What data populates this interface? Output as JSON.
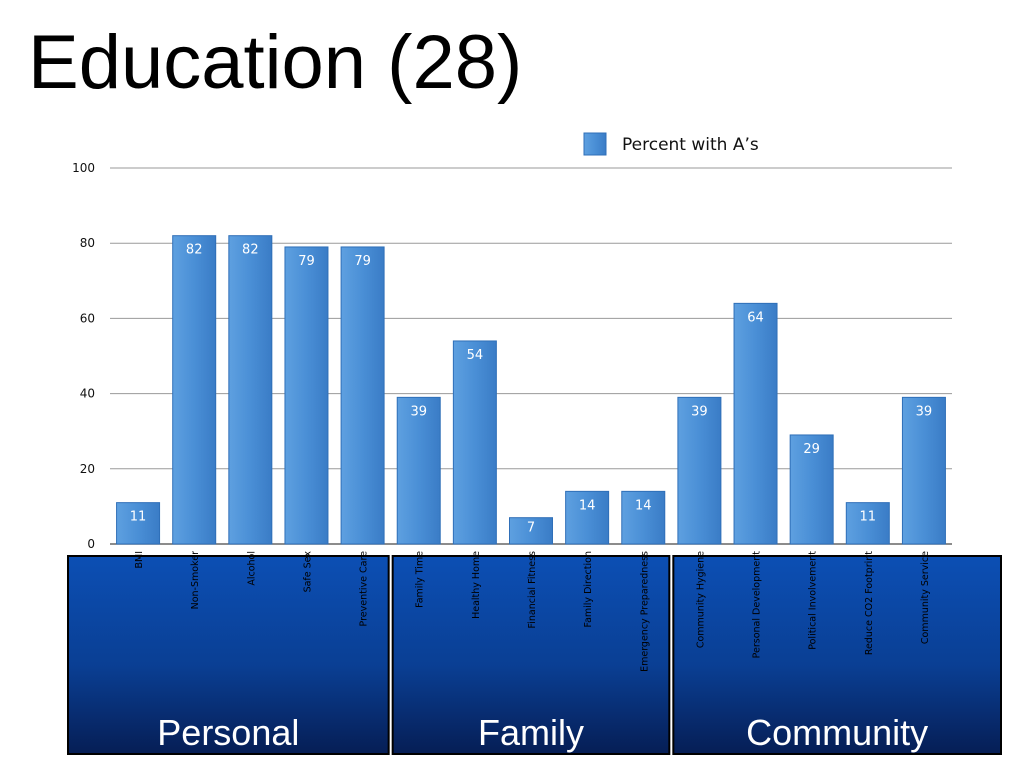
{
  "title": "Education (28)",
  "chart_data": {
    "type": "bar",
    "categories": [
      "BMI",
      "Non-Smoker",
      "Alcohol",
      "Safe Sex",
      "Preventive Care",
      "Family Time",
      "Healthy Home",
      "Financial Fitness",
      "Family Direction",
      "Emergency Preparedness",
      "Community Hygiene",
      "Personal Development",
      "Political Involvement",
      "Reduce CO2 Footprint",
      "Community Service"
    ],
    "series": [
      {
        "name": "Percent with A’s",
        "values": [
          11,
          82,
          82,
          79,
          79,
          39,
          54,
          7,
          14,
          14,
          39,
          64,
          29,
          11,
          39
        ]
      }
    ],
    "ylim": [
      0,
      100
    ],
    "yticks": [
      0,
      20,
      40,
      60,
      80,
      100
    ],
    "grid": true,
    "legend": "top-right",
    "colors": {
      "bar": "#4a90d6",
      "bar_dark": "#2f6fb8",
      "group_box": "#0a4aa8",
      "group_box_dark": "#06235e"
    },
    "groups": [
      {
        "label": "Personal",
        "start": 0,
        "end": 4
      },
      {
        "label": "Family",
        "start": 5,
        "end": 9
      },
      {
        "label": "Community",
        "start": 10,
        "end": 14
      }
    ]
  }
}
